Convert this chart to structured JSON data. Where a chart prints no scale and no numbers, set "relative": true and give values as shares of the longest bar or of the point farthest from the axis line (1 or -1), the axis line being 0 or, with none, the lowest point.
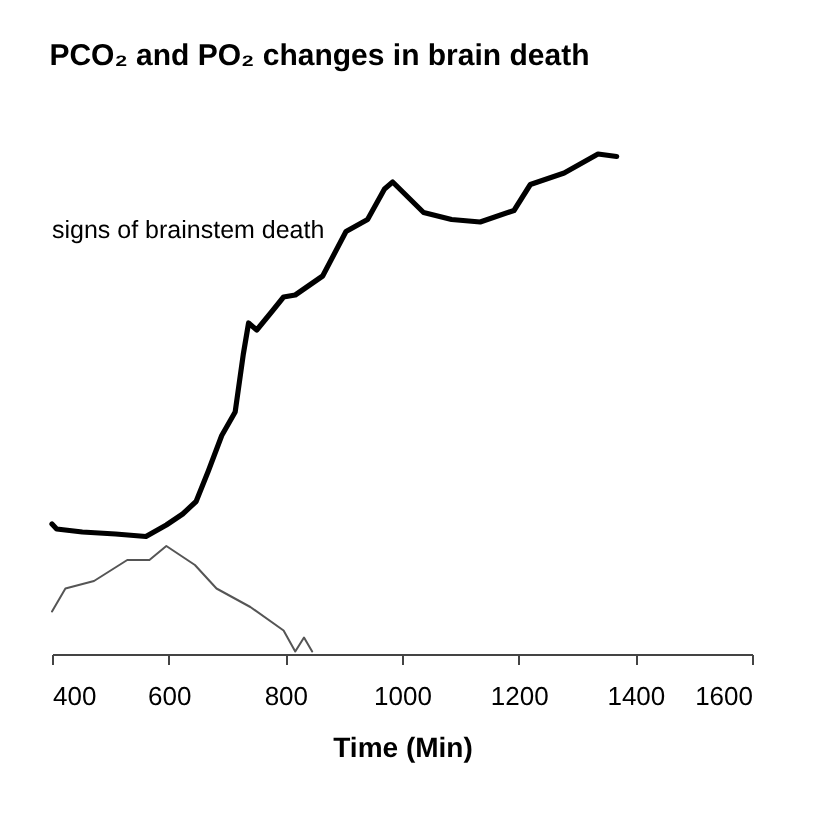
{
  "chart_data": {
    "type": "line",
    "title": "PCO₂ and PO₂ changes in brain death",
    "xlabel": "Time (Min)",
    "relative": true,
    "xlim": [
      400,
      1600
    ],
    "xticks": [
      400,
      600,
      800,
      1000,
      1200,
      1400,
      1600
    ],
    "grid": false,
    "annotations": [
      "signs of brainstem death"
    ],
    "series": [
      {
        "color": "#000000",
        "x": [
          400,
          408,
          452,
          509,
          561,
          596,
          624,
          647,
          668,
          691,
          714,
          728,
          737,
          751,
          777,
          797,
          817,
          864,
          904,
          941,
          970,
          984,
          1037,
          1085,
          1134,
          1192,
          1220,
          1278,
          1336,
          1368
        ],
        "values": [
          0.26,
          0.25,
          0.244,
          0.24,
          0.235,
          0.258,
          0.28,
          0.305,
          0.366,
          0.437,
          0.484,
          0.6,
          0.662,
          0.648,
          0.685,
          0.714,
          0.718,
          0.756,
          0.845,
          0.869,
          0.93,
          0.944,
          0.883,
          0.869,
          0.864,
          0.887,
          0.939,
          0.962,
          1.0,
          0.995
        ]
      },
      {
        "color": "#555555",
        "x": [
          400,
          423,
          472,
          529,
          567,
          596,
          645,
          682,
          740,
          797,
          817,
          832,
          846
        ],
        "values": [
          0.085,
          0.131,
          0.146,
          0.188,
          0.188,
          0.216,
          0.178,
          0.131,
          0.094,
          0.047,
          0.005,
          0.033,
          0.005
        ]
      }
    ]
  }
}
